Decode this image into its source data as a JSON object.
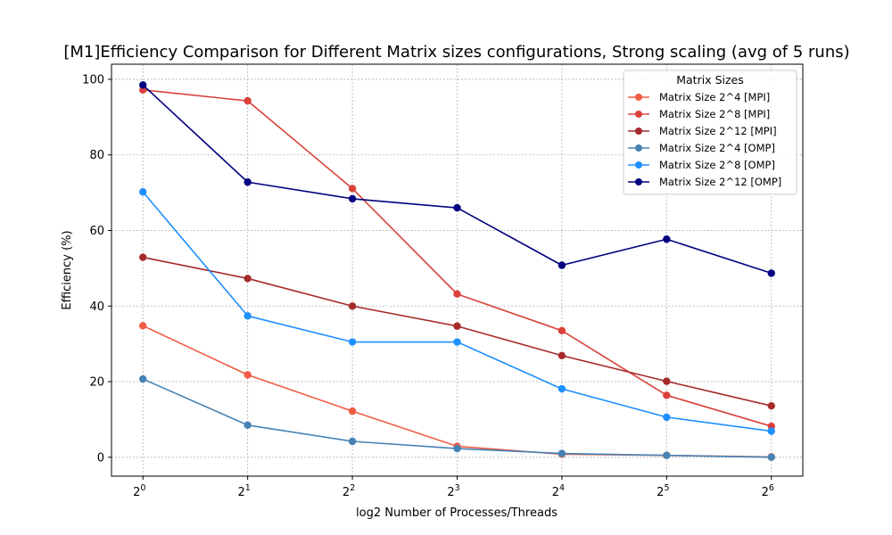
{
  "chart_data": {
    "type": "line",
    "title": "[M1]Efficiency Comparison for Different Matrix sizes configurations, Strong scaling (avg of 5 runs)",
    "xlabel": "log2 Number of Processes/Threads",
    "ylabel": "Efficiency (%)",
    "x": [
      1,
      2,
      4,
      8,
      16,
      32,
      64
    ],
    "x_tick_labels": [
      {
        "base": "2",
        "exp": "0"
      },
      {
        "base": "2",
        "exp": "1"
      },
      {
        "base": "2",
        "exp": "2"
      },
      {
        "base": "2",
        "exp": "3"
      },
      {
        "base": "2",
        "exp": "4"
      },
      {
        "base": "2",
        "exp": "5"
      },
      {
        "base": "2",
        "exp": "6"
      }
    ],
    "x_scale": "log2",
    "y_ticks": [
      0,
      20,
      40,
      60,
      80,
      100
    ],
    "ylim": [
      -5,
      104
    ],
    "grid": true,
    "legend": {
      "title": "Matrix Sizes",
      "placement": "top-right"
    },
    "series": [
      {
        "name": "Matrix Size 2^4 [MPI]",
        "color": "#f15c45",
        "values": [
          34.8,
          21.8,
          12.2,
          2.9,
          0.8,
          0.5,
          0.1
        ]
      },
      {
        "name": "Matrix Size 2^8 [MPI]",
        "color": "#d9413a",
        "values": [
          97.2,
          94.3,
          71.1,
          43.2,
          33.5,
          16.4,
          8.2
        ]
      },
      {
        "name": "Matrix Size 2^12 [MPI]",
        "color": "#a52a2a",
        "values": [
          52.9,
          47.3,
          40.0,
          34.7,
          26.9,
          20.1,
          13.6
        ]
      },
      {
        "name": "Matrix Size 2^4 [OMP]",
        "color": "#4682b4",
        "values": [
          20.7,
          8.5,
          4.2,
          2.3,
          1.0,
          0.5,
          0.0
        ]
      },
      {
        "name": "Matrix Size 2^8 [OMP]",
        "color": "#1e90ff",
        "values": [
          70.2,
          37.4,
          30.5,
          30.5,
          18.1,
          10.6,
          6.9
        ]
      },
      {
        "name": "Matrix Size 2^12 [OMP]",
        "color": "#000080",
        "values": [
          98.5,
          72.8,
          68.4,
          66.0,
          50.8,
          57.7,
          48.7
        ]
      }
    ]
  }
}
